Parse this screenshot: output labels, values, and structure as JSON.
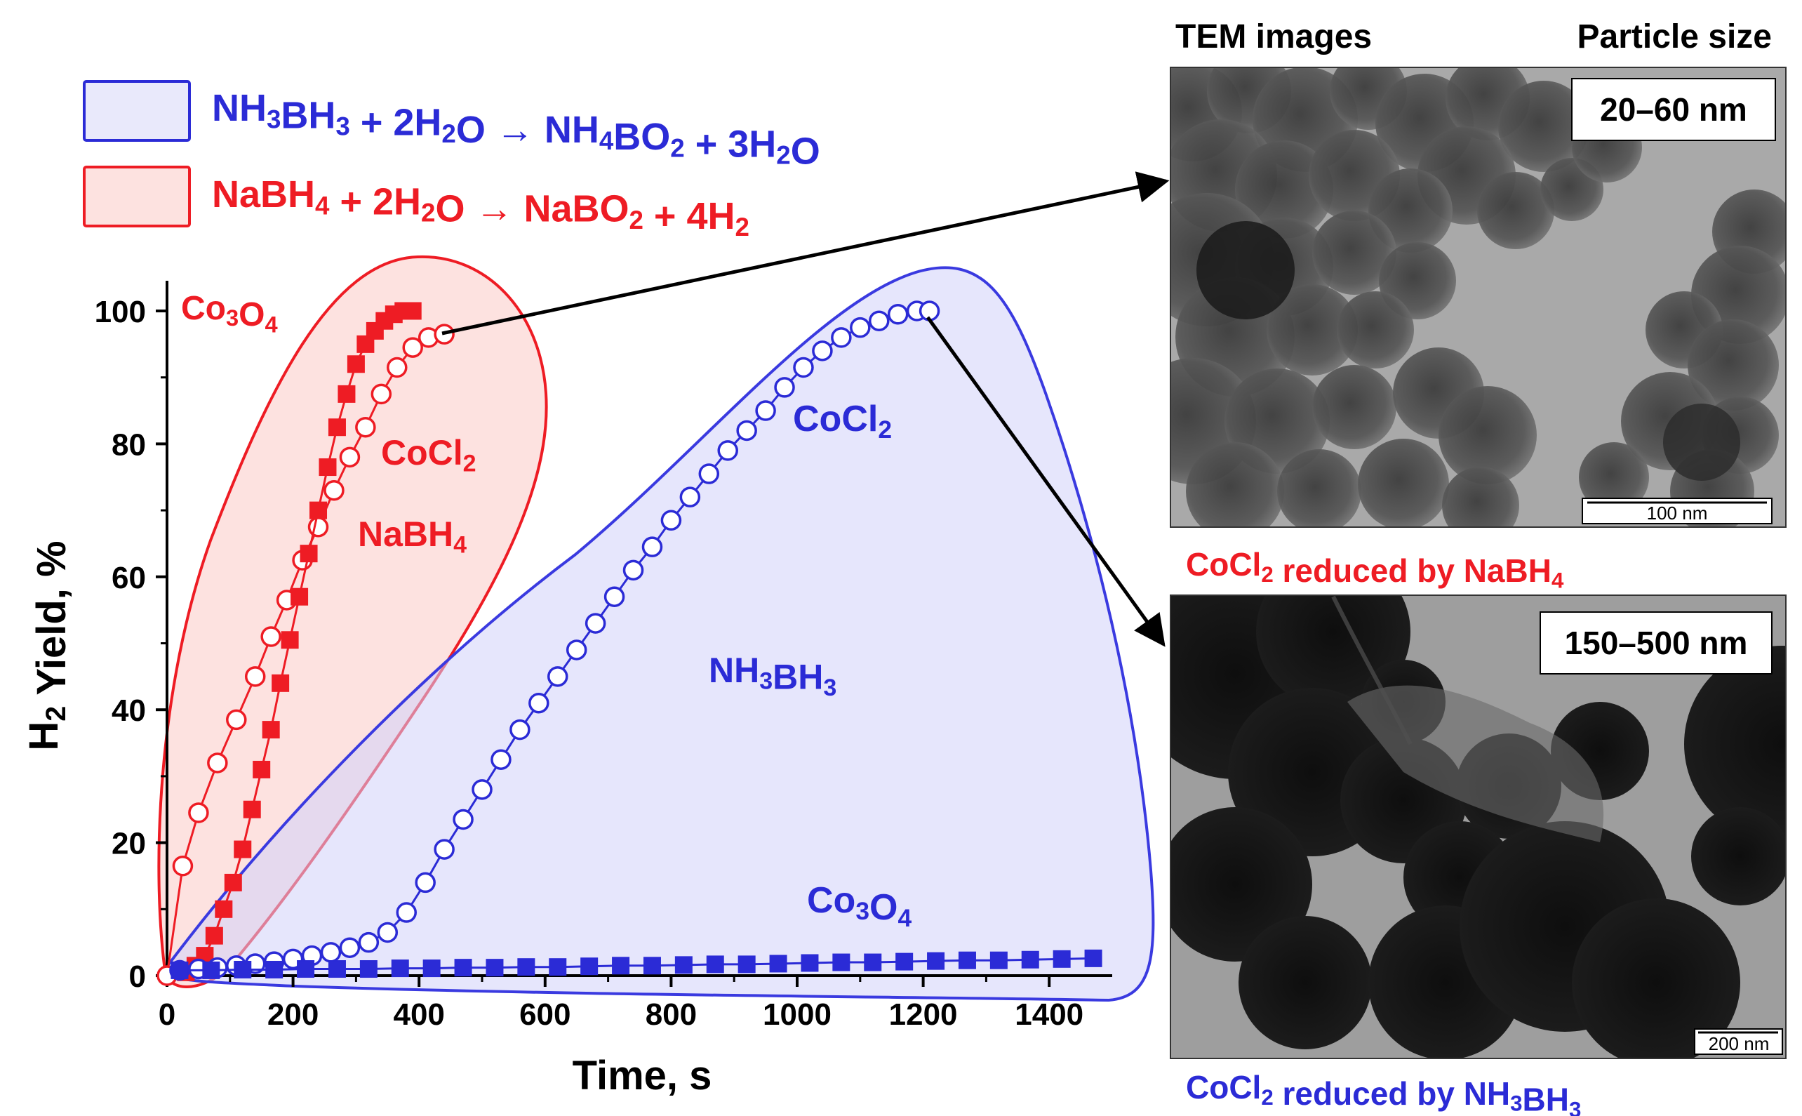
{
  "legend": {
    "nh3bh3": {
      "parts": [
        {
          "t": "NH",
          "s": "n"
        },
        {
          "t": "3",
          "s": "sub"
        },
        {
          "t": "BH",
          "s": "n"
        },
        {
          "t": "3",
          "s": "sub"
        },
        {
          "t": " + 2H",
          "s": "n"
        },
        {
          "t": "2",
          "s": "sub"
        },
        {
          "t": "O → NH",
          "s": "n"
        },
        {
          "t": "4",
          "s": "sub"
        },
        {
          "t": "BO",
          "s": "n"
        },
        {
          "t": "2",
          "s": "sub"
        },
        {
          "t": " + 3H",
          "s": "n"
        },
        {
          "t": "2",
          "s": "sub"
        },
        {
          "t": "O",
          "s": "n"
        }
      ]
    },
    "nabh4": {
      "parts": [
        {
          "t": "NaBH",
          "s": "n"
        },
        {
          "t": "4",
          "s": "sub"
        },
        {
          "t": " + 2H",
          "s": "n"
        },
        {
          "t": "2",
          "s": "sub"
        },
        {
          "t": "O → NaBO",
          "s": "n"
        },
        {
          "t": "2",
          "s": "sub"
        },
        {
          "t": " + 4H",
          "s": "n"
        },
        {
          "t": "2",
          "s": "sub"
        }
      ]
    }
  },
  "colors": {
    "red": "#ee1c24",
    "blue": "#2b2bd6",
    "red_fill": "#fde2e0",
    "blue_fill": "#e9e9fb",
    "axis": "#000000"
  },
  "annotations": {
    "red_co3o4": [
      {
        "t": "Co",
        "s": "n"
      },
      {
        "t": "3",
        "s": "sub"
      },
      {
        "t": "O",
        "s": "n"
      },
      {
        "t": "4",
        "s": "sub"
      }
    ],
    "red_cocl2": [
      {
        "t": "CoCl",
        "s": "n"
      },
      {
        "t": "2",
        "s": "sub"
      }
    ],
    "red_nabh4": [
      {
        "t": "NaBH",
        "s": "n"
      },
      {
        "t": "4",
        "s": "sub"
      }
    ],
    "blue_cocl2": [
      {
        "t": "CoCl",
        "s": "n"
      },
      {
        "t": "2",
        "s": "sub"
      }
    ],
    "blue_nh3bh3": [
      {
        "t": "NH",
        "s": "n"
      },
      {
        "t": "3",
        "s": "sub"
      },
      {
        "t": "BH",
        "s": "n"
      },
      {
        "t": "3",
        "s": "sub"
      }
    ],
    "blue_co3o4": [
      {
        "t": "Co",
        "s": "n"
      },
      {
        "t": "3",
        "s": "sub"
      },
      {
        "t": "O",
        "s": "n"
      },
      {
        "t": "4",
        "s": "sub"
      }
    ]
  },
  "tem": {
    "header_left": "TEM images",
    "header_right": "Particle size",
    "top_size": "20–60 nm",
    "top_scale": "100 nm",
    "top_caption": [
      {
        "t": "CoCl",
        "s": "n"
      },
      {
        "t": "2",
        "s": "sub"
      },
      {
        "t": " reduced by NaBH",
        "s": "n"
      },
      {
        "t": "4",
        "s": "sub"
      }
    ],
    "bottom_size": "150–500 nm",
    "bottom_scale": "200 nm",
    "bottom_caption": [
      {
        "t": "CoCl",
        "s": "n"
      },
      {
        "t": "2",
        "s": "sub"
      },
      {
        "t": " reduced by NH",
        "s": "n"
      },
      {
        "t": "3",
        "s": "sub"
      },
      {
        "t": "BH",
        "s": "n"
      },
      {
        "t": "3",
        "s": "sub"
      }
    ]
  },
  "chart_data": {
    "type": "scatter",
    "xlabel": "Time, s",
    "ylabel": [
      {
        "t": "H",
        "s": "n"
      },
      {
        "t": "2",
        "s": "sub"
      },
      {
        "t": " Yield, %",
        "s": "n"
      }
    ],
    "xlim": [
      0,
      1500
    ],
    "ylim": [
      0,
      100
    ],
    "xticks": [
      0,
      200,
      400,
      600,
      800,
      1000,
      1200,
      1400
    ],
    "yticks": [
      0,
      20,
      40,
      60,
      80,
      100
    ],
    "series": [
      {
        "color": "red",
        "marker": "open-circle",
        "x": [
          0,
          25,
          50,
          80,
          110,
          140,
          165,
          190,
          215,
          240,
          265,
          290,
          315,
          340,
          365,
          390,
          415,
          440
        ],
        "y": [
          0,
          16.5,
          24.5,
          32,
          38.5,
          45,
          51,
          56.5,
          62.5,
          67.5,
          73,
          78,
          82.5,
          87.5,
          91.5,
          94.5,
          96,
          96.5
        ]
      },
      {
        "color": "red",
        "marker": "filled-square",
        "x": [
          30,
          45,
          60,
          75,
          90,
          105,
          120,
          135,
          150,
          165,
          180,
          195,
          210,
          225,
          240,
          255,
          270,
          285,
          300,
          315,
          330,
          345,
          360,
          375,
          390
        ],
        "y": [
          0.5,
          1.5,
          3,
          6,
          10,
          14,
          19,
          25,
          31,
          37,
          44,
          50.5,
          57,
          63.5,
          70,
          76.5,
          82.5,
          87.5,
          92,
          95,
          97,
          98.5,
          99.5,
          100,
          100
        ]
      },
      {
        "color": "blue",
        "marker": "open-circle",
        "x": [
          20,
          50,
          80,
          110,
          140,
          170,
          200,
          230,
          260,
          290,
          320,
          350,
          380,
          410,
          440,
          470,
          500,
          530,
          560,
          590,
          620,
          650,
          680,
          710,
          740,
          770,
          800,
          830,
          860,
          890,
          920,
          950,
          980,
          1010,
          1040,
          1070,
          1100,
          1130,
          1160,
          1190,
          1210
        ],
        "y": [
          0.8,
          1,
          1.2,
          1.5,
          1.8,
          2.1,
          2.5,
          3,
          3.5,
          4.2,
          5,
          6.5,
          9.5,
          14,
          19,
          23.5,
          28,
          32.5,
          37,
          41,
          45,
          49,
          53,
          57,
          61,
          64.5,
          68.5,
          72,
          75.5,
          79,
          82,
          85,
          88.5,
          91.5,
          94,
          96,
          97.5,
          98.5,
          99.5,
          100,
          100
        ]
      },
      {
        "color": "blue",
        "marker": "filled-square",
        "x": [
          20,
          70,
          120,
          170,
          220,
          270,
          320,
          370,
          420,
          470,
          520,
          570,
          620,
          670,
          720,
          770,
          820,
          870,
          920,
          970,
          1020,
          1070,
          1120,
          1170,
          1220,
          1270,
          1320,
          1370,
          1420,
          1470
        ],
        "y": [
          0.8,
          0.8,
          0.9,
          0.9,
          1,
          1,
          1,
          1.1,
          1.1,
          1.2,
          1.2,
          1.3,
          1.3,
          1.4,
          1.5,
          1.5,
          1.6,
          1.7,
          1.7,
          1.8,
          1.9,
          2,
          2,
          2.1,
          2.2,
          2.3,
          2.3,
          2.4,
          2.5,
          2.6
        ]
      }
    ]
  }
}
